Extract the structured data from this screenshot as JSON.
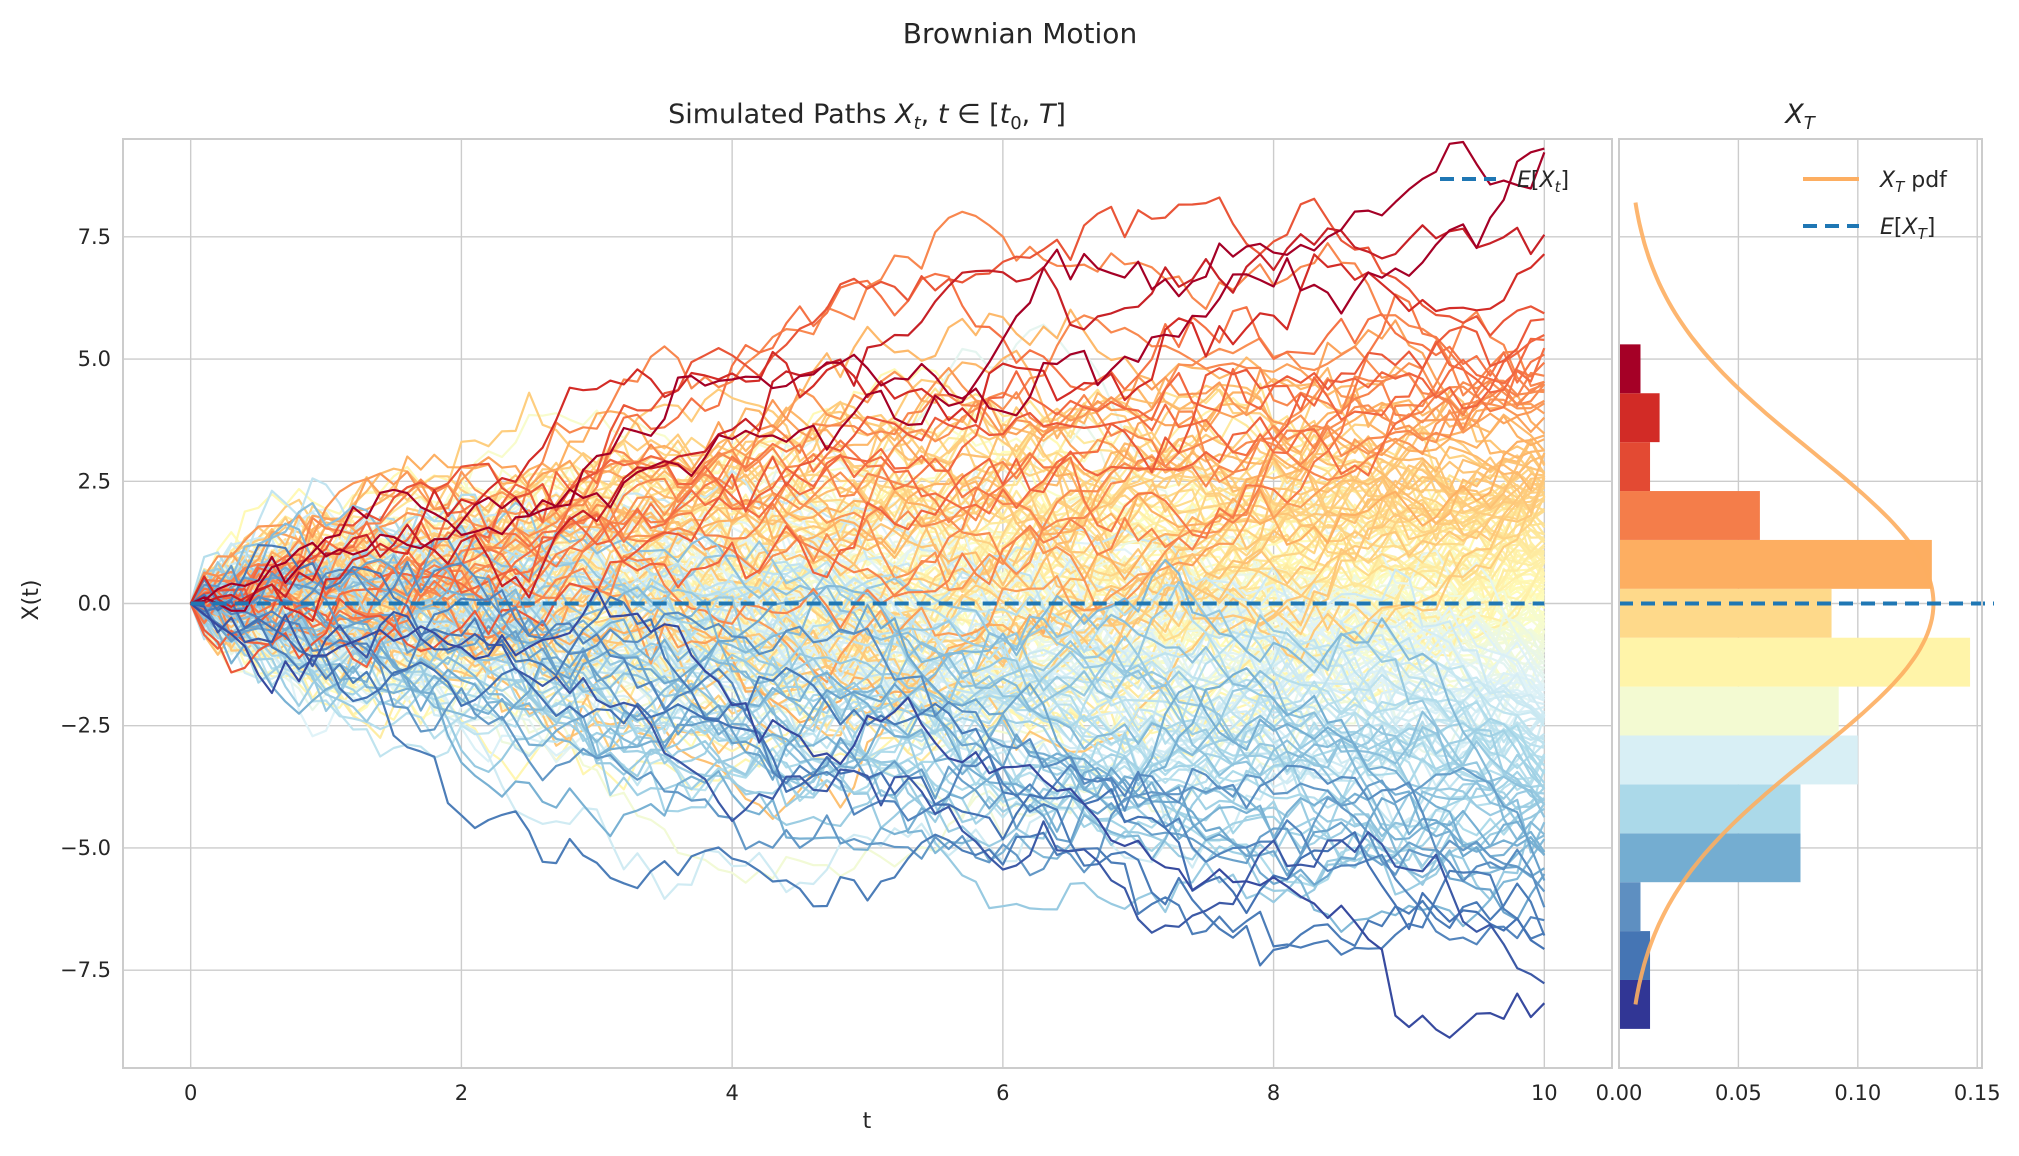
{
  "figure": {
    "suptitle": "Brownian Motion"
  },
  "chart_data": [
    {
      "type": "line",
      "title": "Simulated Paths X_t, t ∈ [t_0, T]",
      "xlabel": "t",
      "ylabel": "X(t)",
      "xlim": [
        -0.5,
        10.5
      ],
      "ylim": [
        -9.5,
        9.5
      ],
      "x_ticks": [
        "0",
        "2",
        "4",
        "6",
        "8",
        "10"
      ],
      "y_ticks": [
        "−7.5",
        "−5.0",
        "−2.5",
        "0.0",
        "2.5",
        "5.0",
        "7.5"
      ],
      "grid": true,
      "legend_position": "top-right",
      "legend": [
        {
          "label": "E[X_t]",
          "color": "#1f77b4",
          "style": "dashed"
        }
      ],
      "mean_line": {
        "value": 0.0,
        "color": "#1f77b4"
      },
      "simulation": {
        "n_paths": 220,
        "n_steps": 100,
        "t_start": 0,
        "t_end": 10,
        "x0": 0,
        "colormap": "RdYlBu_r"
      }
    },
    {
      "type": "bar",
      "orientation": "horizontal",
      "title": "X_T",
      "xlim": [
        0.0,
        0.152
      ],
      "ylim": [
        -9.5,
        9.5
      ],
      "x_ticks": [
        "0.00",
        "0.05",
        "0.10",
        "0.15"
      ],
      "grid": true,
      "legend_position": "top-right",
      "legend": [
        {
          "label": "X_T pdf",
          "color": "#fdae61",
          "style": "solid"
        },
        {
          "label": "E[X_T]",
          "color": "#1f77b4",
          "style": "dashed"
        }
      ],
      "bins": [
        {
          "y0": -8.7,
          "y1": -7.7,
          "value": 0.013,
          "color": "#313695"
        },
        {
          "y0": -7.7,
          "y1": -6.7,
          "value": 0.013,
          "color": "#4575b4"
        },
        {
          "y0": -6.7,
          "y1": -5.7,
          "value": 0.009,
          "color": "#5e8fc1"
        },
        {
          "y0": -5.7,
          "y1": -4.7,
          "value": 0.076,
          "color": "#74add1"
        },
        {
          "y0": -4.7,
          "y1": -3.7,
          "value": 0.076,
          "color": "#abd9e9"
        },
        {
          "y0": -3.7,
          "y1": -2.7,
          "value": 0.1,
          "color": "#d8eff5"
        },
        {
          "y0": -2.7,
          "y1": -1.7,
          "value": 0.092,
          "color": "#f3fad2"
        },
        {
          "y0": -1.7,
          "y1": -0.7,
          "value": 0.147,
          "color": "#fff4a9"
        },
        {
          "y0": -0.7,
          "y1": 0.3,
          "value": 0.089,
          "color": "#fed98a"
        },
        {
          "y0": 0.3,
          "y1": 1.3,
          "value": 0.131,
          "color": "#fdae61"
        },
        {
          "y0": 1.3,
          "y1": 2.3,
          "value": 0.059,
          "color": "#f47d4a"
        },
        {
          "y0": 2.3,
          "y1": 3.3,
          "value": 0.013,
          "color": "#e34a33"
        },
        {
          "y0": 3.3,
          "y1": 4.3,
          "value": 0.017,
          "color": "#d22b26"
        },
        {
          "y0": 4.3,
          "y1": 5.3,
          "value": 0.009,
          "color": "#a50026"
        }
      ],
      "pdf": {
        "mean": 0.0,
        "std": 3.1,
        "ymin": -8.2,
        "ymax": 8.2,
        "color": "#fdae61"
      },
      "mean_line": {
        "value": 0.0,
        "color": "#1f77b4"
      }
    }
  ]
}
